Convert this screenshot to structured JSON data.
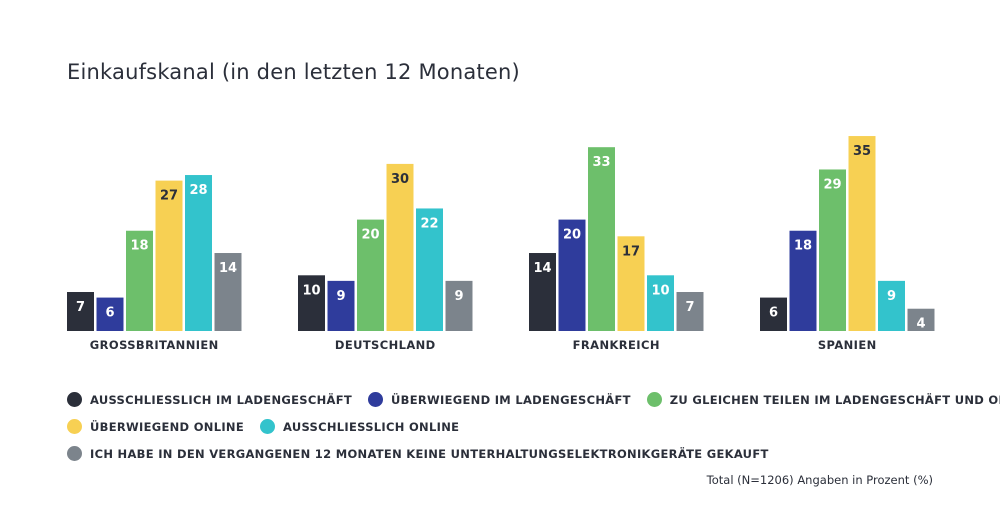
{
  "chart_data": {
    "type": "bar",
    "title": "Einkaufskanal (in den letzten 12 Monaten)",
    "categories": [
      "GROSSBRITANNIEN",
      "DEUTSCHLAND",
      "FRANKREICH",
      "SPANIEN"
    ],
    "series": [
      {
        "name": "AUSSCHLIESSLICH IM LADENGESCHÄFT",
        "color": "#2b2f3a",
        "values": [
          7,
          10,
          14,
          6
        ]
      },
      {
        "name": "ÜBERWIEGEND IM LADENGESCHÄFT",
        "color": "#2f3c9c",
        "values": [
          6,
          9,
          20,
          18
        ]
      },
      {
        "name": "ZU GLEICHEN TEILEN IM LADENGESCHÄFT UND ONLINE",
        "color": "#6dbf6b",
        "values": [
          18,
          20,
          33,
          29
        ]
      },
      {
        "name": "ÜBERWIEGEND ONLINE",
        "color": "#f7d053",
        "values": [
          27,
          30,
          17,
          35
        ]
      },
      {
        "name": "AUSSCHLIESSLICH ONLINE",
        "color": "#33c3cc",
        "values": [
          28,
          22,
          10,
          9
        ]
      },
      {
        "name": "ICH HABE IN DEN VERGANGENEN 12 MONATEN KEINE UNTERHALTUNGSELEKTRONIKGERÄTE GEKAUFT",
        "color": "#7c848c",
        "values": [
          14,
          9,
          7,
          4
        ]
      }
    ],
    "xlabel": "",
    "ylabel": "",
    "ylim": [
      0,
      35
    ],
    "grid": false,
    "legend": "bottom"
  },
  "footnote": "Total (N=1206) Angaben in Prozent (%)"
}
